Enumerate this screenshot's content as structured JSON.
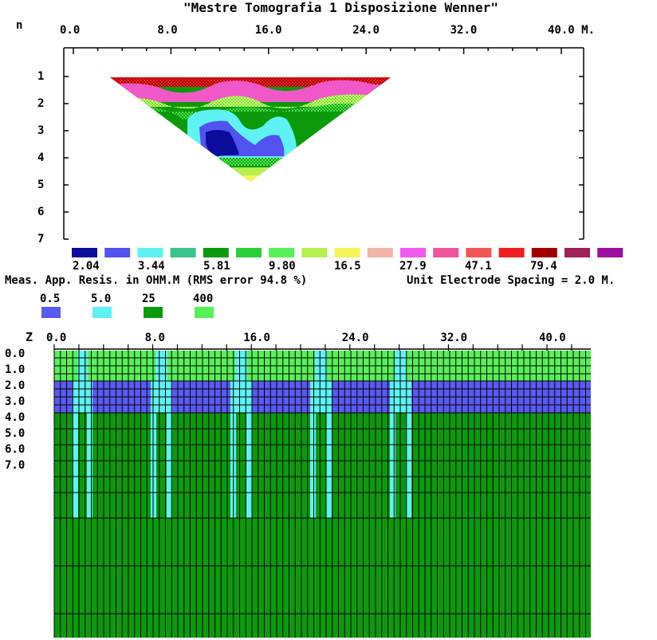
{
  "title": "\"Mestre Tomografia 1 Disposizione Wenner\"",
  "pseudosection": {
    "n_label": "n",
    "x_ticks": [
      "0.0",
      "8.0",
      "16.0",
      "24.0",
      "32.0",
      "40.0 M."
    ],
    "n_ticks": [
      "1",
      "2",
      "3",
      "4",
      "5",
      "6",
      "7"
    ],
    "palette": [
      "#0c0c9a",
      "#5252f0",
      "#5ff2f2",
      "#39c48a",
      "#0c9a0c",
      "#2bcf3a",
      "#58f058",
      "#b5f04e",
      "#f5f55a",
      "#f0b4a8",
      "#f05af0",
      "#f056a0",
      "#f05656",
      "#f02020",
      "#a00000",
      "#a0205a",
      "#a010a0"
    ],
    "legend_values": [
      "2.04",
      "3.44",
      "5.81",
      "9.80",
      "16.5",
      "27.9",
      "47.1",
      "79.4"
    ],
    "caption": "Meas. App. Resis. in OHM.M (RMS error 94.8 %)",
    "spacing": "Unit Electrode Spacing = 2.0 M."
  },
  "model": {
    "z_label": "Z",
    "x_ticks": [
      "0.0",
      "8.0",
      "16.0",
      "24.0",
      "32.0",
      "40.0"
    ],
    "z_ticks": [
      "0.0",
      "1.0",
      "2.0",
      "3.0",
      "4.0",
      "5.0",
      "6.0",
      "7.0"
    ],
    "legend": [
      {
        "value": "0.5",
        "color": "#5a5af0"
      },
      {
        "value": "5.0",
        "color": "#5ff2f2"
      },
      {
        "value": "25",
        "color": "#0c9a0c"
      },
      {
        "value": "400",
        "color": "#58f058"
      }
    ]
  }
}
